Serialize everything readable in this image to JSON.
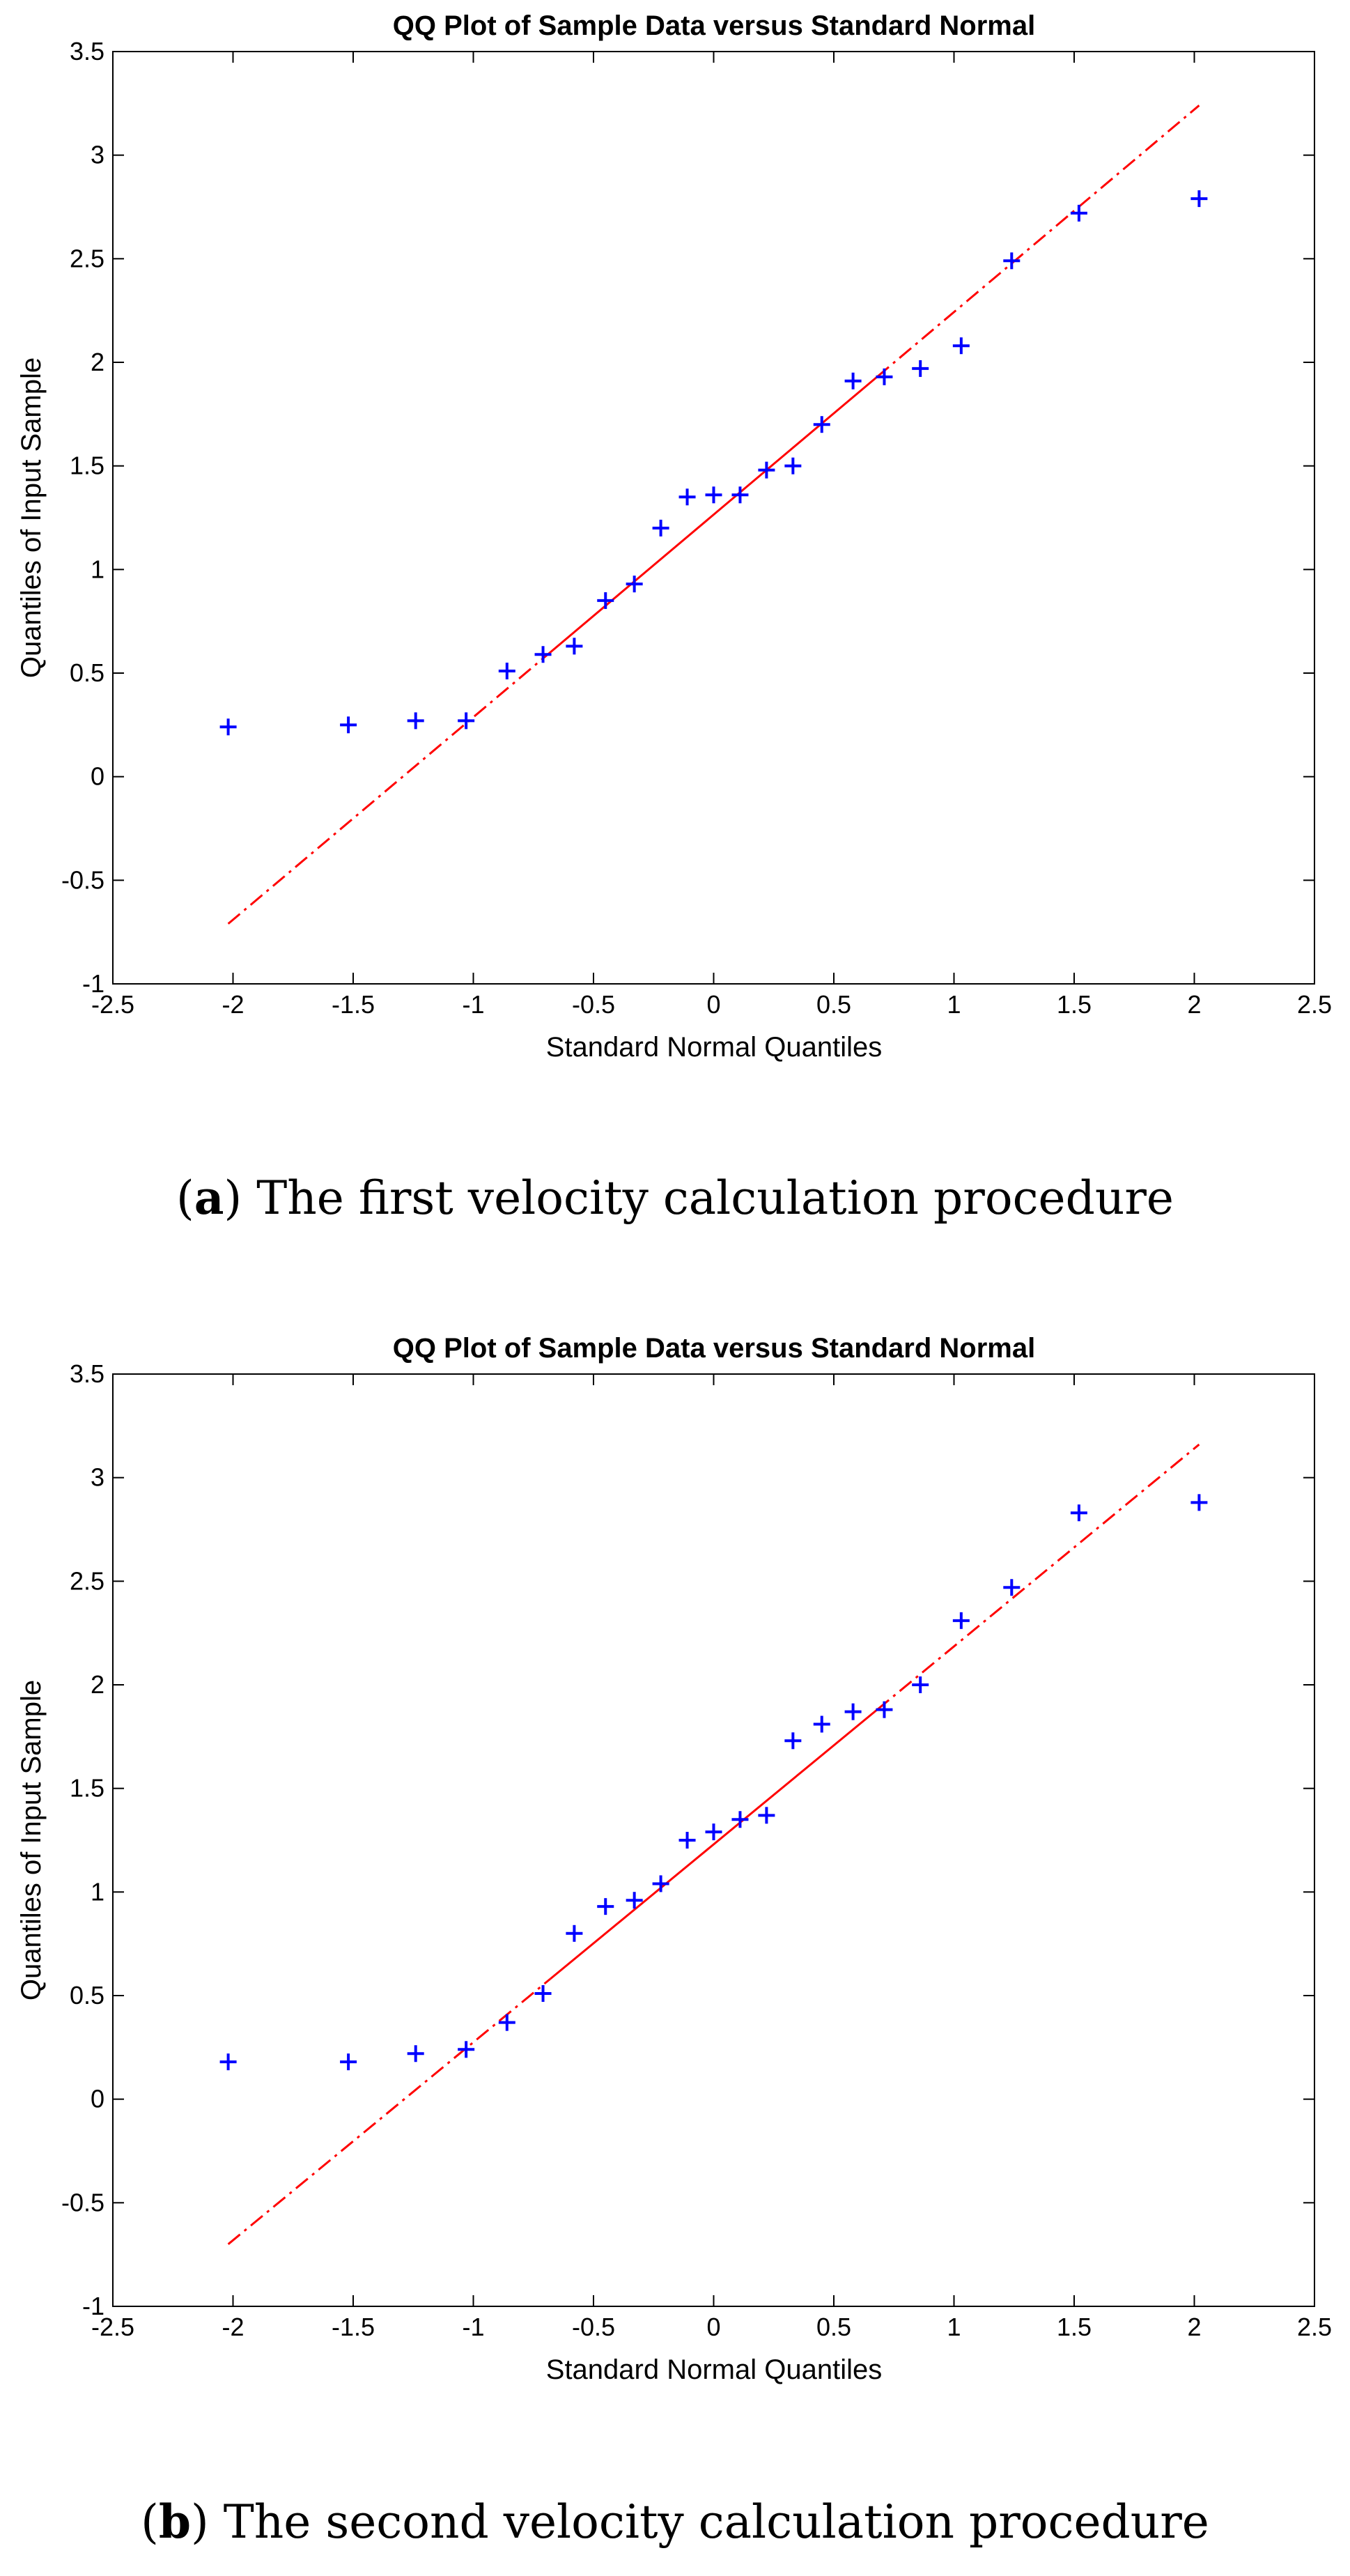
{
  "colors": {
    "points": "#0000ff",
    "line": "#ff0000",
    "axis": "#000000"
  },
  "chart_data": [
    {
      "type": "scatter",
      "title": "QQ Plot of Sample Data versus Standard Normal",
      "xlabel": "Standard Normal Quantiles",
      "ylabel": "Quantiles of Input Sample",
      "xlim": [
        -2.5,
        2.5
      ],
      "ylim": [
        -1,
        3.5
      ],
      "xticks": [
        "-2.5",
        "-2",
        "-1.5",
        "-1",
        "-0.5",
        "0",
        "0.5",
        "1",
        "1.5",
        "2",
        "2.5"
      ],
      "yticks": [
        "-1",
        "-0.5",
        "0",
        "0.5",
        "1",
        "1.5",
        "2",
        "2.5",
        "3",
        "3.5"
      ],
      "points": {
        "x": [
          -2.02,
          -1.52,
          -1.24,
          -1.03,
          -0.86,
          -0.71,
          -0.58,
          -0.45,
          -0.33,
          -0.22,
          -0.11,
          0.0,
          0.11,
          0.22,
          0.33,
          0.45,
          0.58,
          0.71,
          0.86,
          1.03,
          1.24,
          1.52,
          2.02
        ],
        "y": [
          0.24,
          0.25,
          0.27,
          0.27,
          0.51,
          0.59,
          0.63,
          0.85,
          0.93,
          1.2,
          1.35,
          1.36,
          1.36,
          1.48,
          1.5,
          1.7,
          1.91,
          1.93,
          1.97,
          2.08,
          2.49,
          2.72,
          2.79
        ]
      },
      "reference_line": {
        "x": [
          -2.02,
          2.02
        ],
        "y": [
          -0.71,
          3.24
        ]
      },
      "caption_label": "a",
      "caption_text": " The first velocity calculation procedure"
    },
    {
      "type": "scatter",
      "title": "QQ Plot of Sample Data versus Standard Normal",
      "xlabel": "Standard Normal Quantiles",
      "ylabel": "Quantiles of Input Sample",
      "xlim": [
        -2.5,
        2.5
      ],
      "ylim": [
        -1,
        3.5
      ],
      "xticks": [
        "-2.5",
        "-2",
        "-1.5",
        "-1",
        "-0.5",
        "0",
        "0.5",
        "1",
        "1.5",
        "2",
        "2.5"
      ],
      "yticks": [
        "-1",
        "-0.5",
        "0",
        "0.5",
        "1",
        "1.5",
        "2",
        "2.5",
        "3",
        "3.5"
      ],
      "points": {
        "x": [
          -2.02,
          -1.52,
          -1.24,
          -1.03,
          -0.86,
          -0.71,
          -0.58,
          -0.45,
          -0.33,
          -0.22,
          -0.11,
          0.0,
          0.11,
          0.22,
          0.33,
          0.45,
          0.58,
          0.71,
          0.86,
          1.03,
          1.24,
          1.52,
          2.02
        ],
        "y": [
          0.18,
          0.18,
          0.22,
          0.24,
          0.37,
          0.51,
          0.8,
          0.93,
          0.96,
          1.04,
          1.25,
          1.29,
          1.35,
          1.37,
          1.73,
          1.81,
          1.87,
          1.88,
          2.0,
          2.31,
          2.47,
          2.83,
          2.88
        ]
      },
      "reference_line": {
        "x": [
          -2.02,
          2.02
        ],
        "y": [
          -0.7,
          3.16
        ]
      },
      "caption_label": "b",
      "caption_text": " The second velocity calculation procedure"
    }
  ]
}
